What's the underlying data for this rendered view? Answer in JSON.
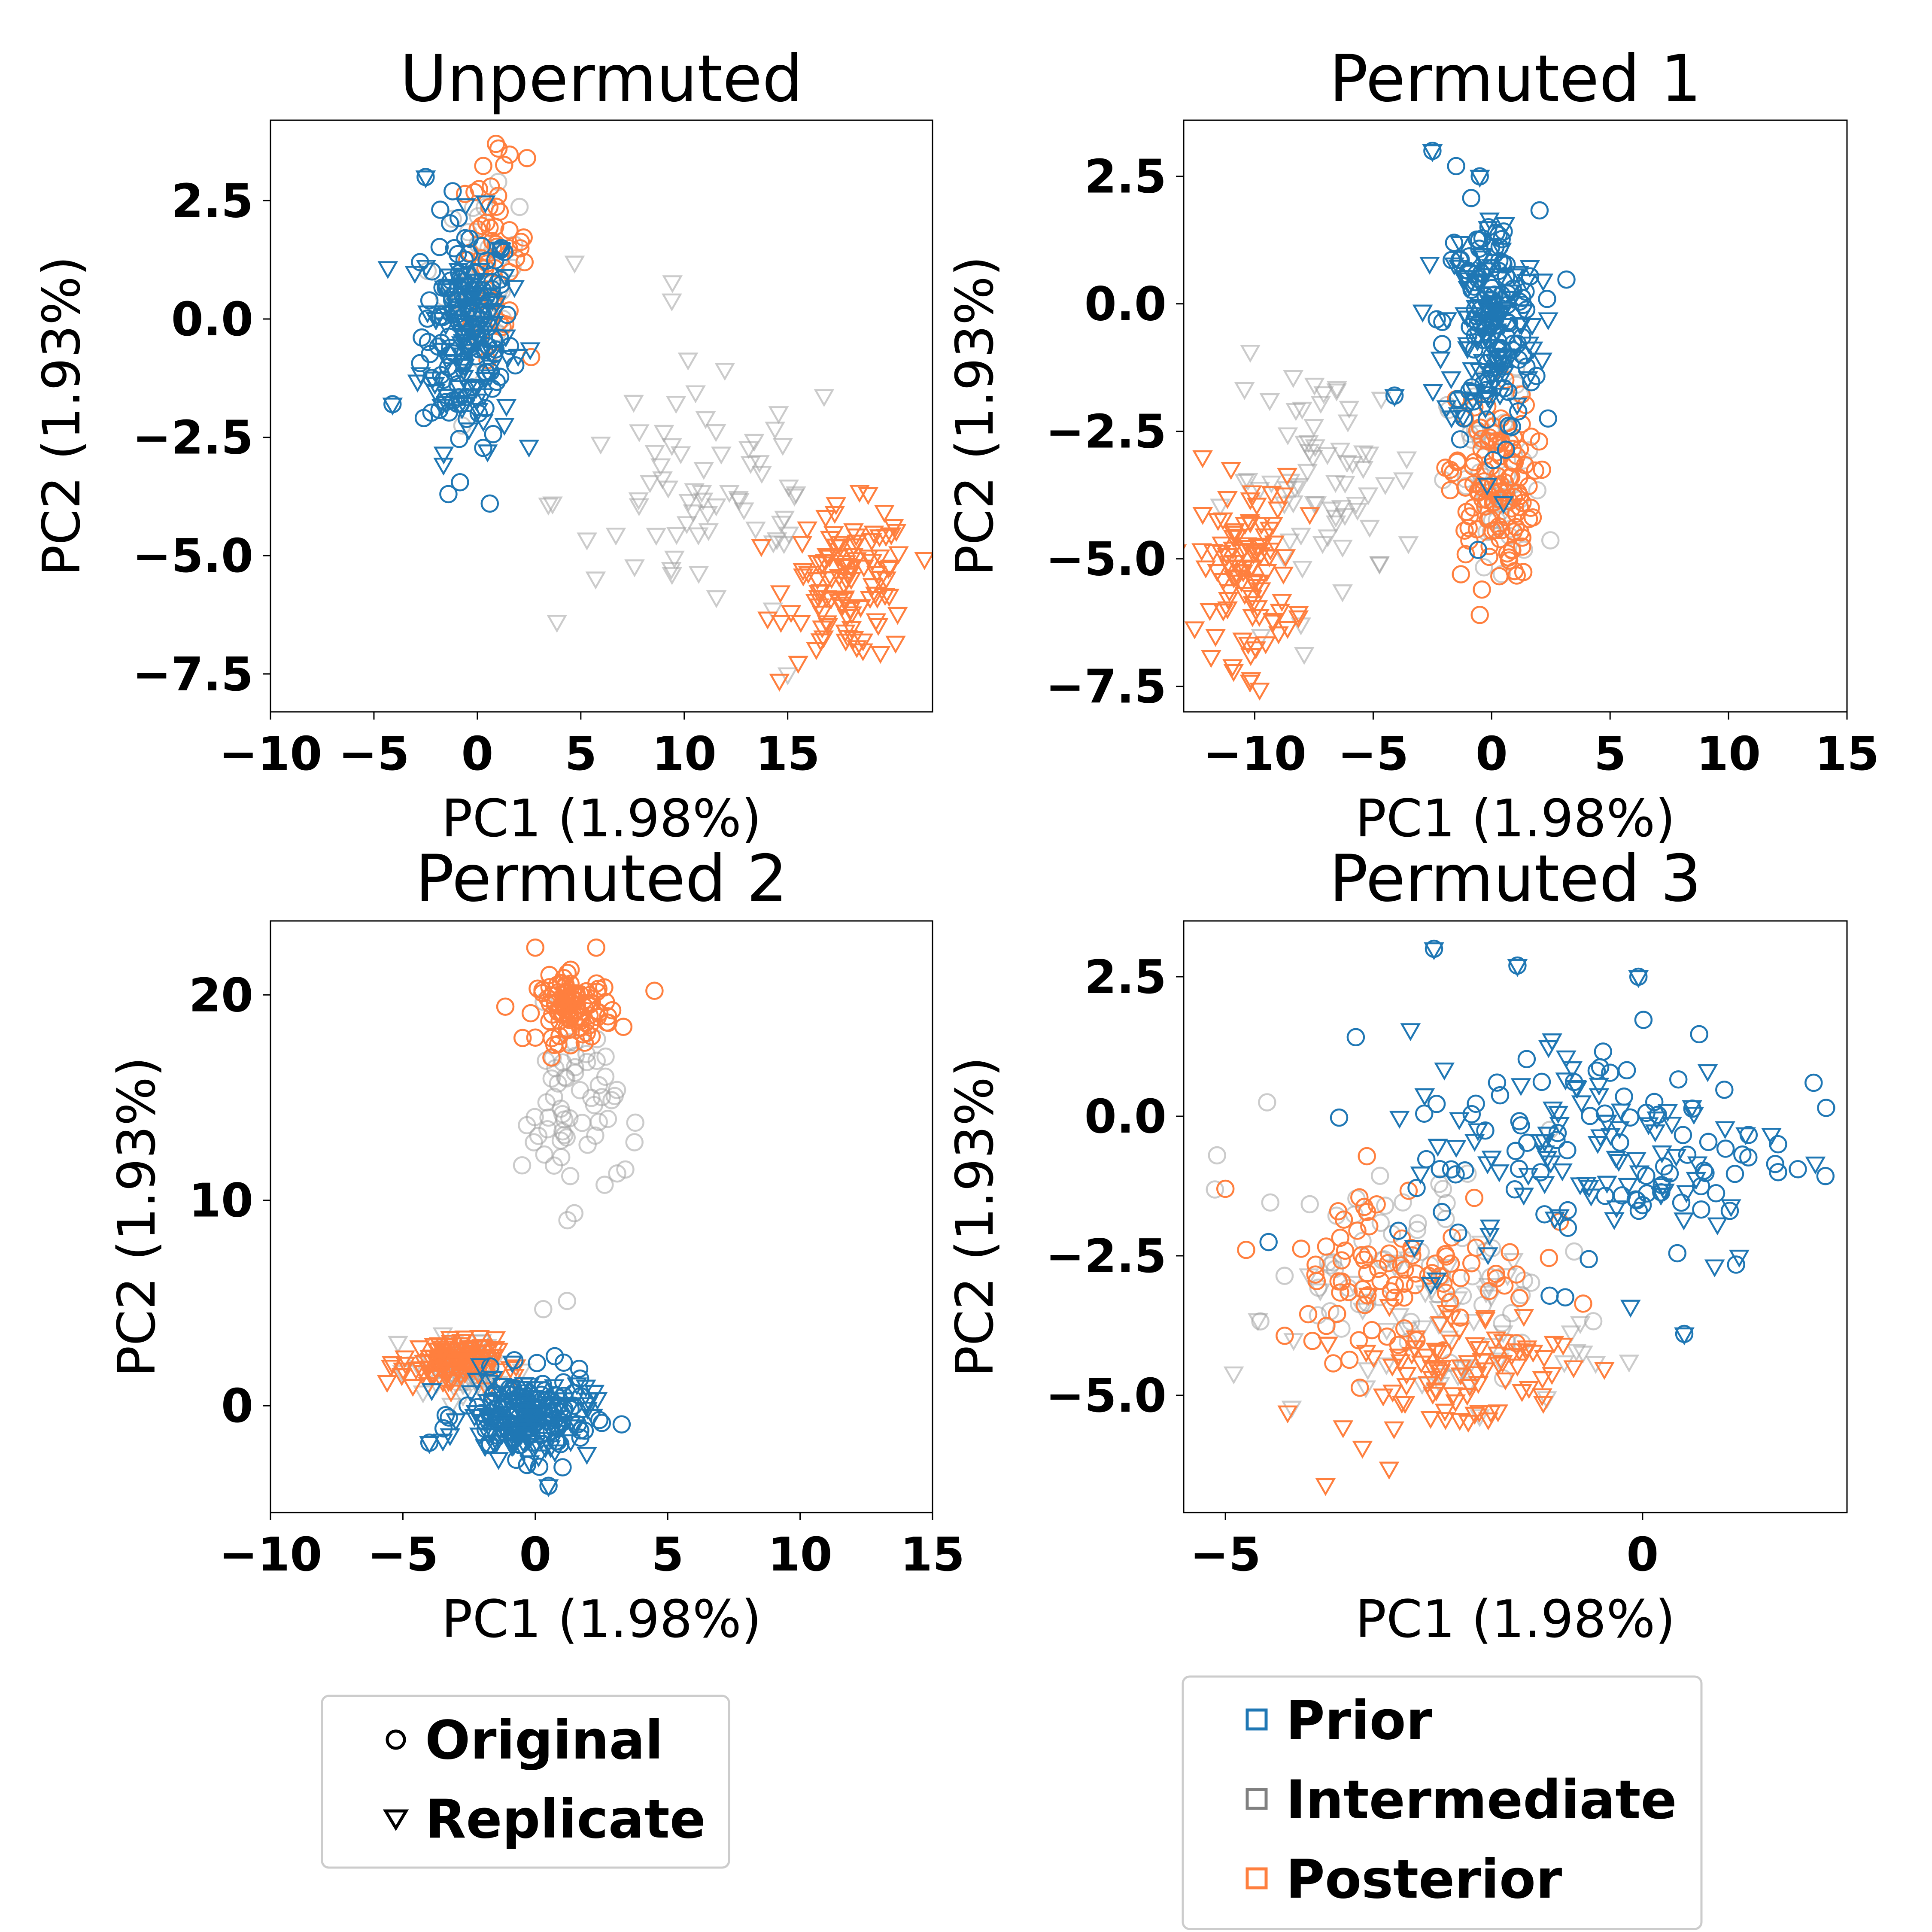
{
  "colors": {
    "Prior": "#1f77b4",
    "Intermediate": "#a0a0a0",
    "Posterior": "#ff7f3e"
  },
  "legend_markers": {
    "title": "",
    "entries": [
      {
        "label": "Original",
        "marker": "circle"
      },
      {
        "label": "Replicate",
        "marker": "triangle-down"
      }
    ]
  },
  "legend_colors": {
    "title": "",
    "entries": [
      {
        "label": "Prior",
        "color": "#1f77b4"
      },
      {
        "label": "Intermediate",
        "color": "#808080"
      },
      {
        "label": "Posterior",
        "color": "#ff7f3e"
      }
    ]
  },
  "chart_data": [
    {
      "type": "scatter",
      "title": "Unpermuted",
      "xlabel": "PC1 (1.98%)",
      "ylabel": "PC2 (1.93%)",
      "xlim": [
        -10,
        22
      ],
      "ylim": [
        -8.3,
        4.2
      ],
      "xticks": [
        -10,
        -5,
        0,
        5,
        10,
        15
      ],
      "xtick_labels": [
        "−10",
        "−5",
        "0",
        "5",
        "10",
        "15"
      ],
      "yticks": [
        2.5,
        0,
        -2.5,
        -5,
        -7.5
      ],
      "ytick_labels": [
        "2.5",
        "0.0",
        "−2.5",
        "−5.0",
        "−7.5"
      ],
      "grid": false,
      "clusters": [
        {
          "series": "Prior",
          "marker": "circle",
          "cx": -0.5,
          "cy": -0.3,
          "sx": 1.1,
          "sy": 1.2,
          "n": 120
        },
        {
          "series": "Prior",
          "marker": "triangle-down",
          "cx": -0.5,
          "cy": -0.3,
          "sx": 1.1,
          "sy": 1.2,
          "n": 110
        },
        {
          "series": "Intermediate",
          "marker": "circle",
          "cx": 0.2,
          "cy": 0.8,
          "sx": 0.9,
          "sy": 0.9,
          "n": 40
        },
        {
          "series": "Posterior",
          "marker": "circle",
          "cx": 0.8,
          "cy": 1.5,
          "sx": 0.8,
          "sy": 0.9,
          "n": 50
        },
        {
          "series": "Intermediate",
          "marker": "triangle-down",
          "cx": 11.0,
          "cy": -3.8,
          "sx": 3.6,
          "sy": 1.4,
          "n": 70
        },
        {
          "series": "Posterior",
          "marker": "triangle-down",
          "cx": 18.0,
          "cy": -5.6,
          "sx": 1.5,
          "sy": 0.8,
          "n": 110
        }
      ],
      "points": [
        {
          "series": "Posterior",
          "marker": "circle",
          "x": 0.9,
          "y": 3.7
        },
        {
          "series": "Posterior",
          "marker": "circle",
          "x": 2.4,
          "y": 3.4
        },
        {
          "series": "Prior",
          "marker": "circle",
          "x": -2.5,
          "y": 3.0
        },
        {
          "series": "Prior",
          "marker": "triangle-down",
          "x": -2.5,
          "y": 3.0
        },
        {
          "series": "Prior",
          "marker": "circle",
          "x": -4.1,
          "y": -1.8
        },
        {
          "series": "Prior",
          "marker": "triangle-down",
          "x": -4.1,
          "y": -1.8
        },
        {
          "series": "Prior",
          "marker": "circle",
          "x": -1.4,
          "y": -3.7
        },
        {
          "series": "Prior",
          "marker": "circle",
          "x": 0.6,
          "y": -3.9
        },
        {
          "series": "Intermediate",
          "marker": "triangle-down",
          "x": 4.7,
          "y": 1.2
        },
        {
          "series": "Intermediate",
          "marker": "triangle-down",
          "x": 9.4,
          "y": 0.4
        },
        {
          "series": "Intermediate",
          "marker": "triangle-down",
          "x": 15.0,
          "y": -7.5
        }
      ]
    },
    {
      "type": "scatter",
      "title": "Permuted 1",
      "xlabel": "PC1 (1.98%)",
      "ylabel": "PC2 (1.93%)",
      "xlim": [
        -13,
        15
      ],
      "ylim": [
        -8,
        3.6
      ],
      "xticks": [
        -10,
        -5,
        0,
        5,
        10,
        15
      ],
      "xtick_labels": [
        "−10",
        "−5",
        "0",
        "5",
        "10",
        "15"
      ],
      "yticks": [
        2.5,
        0,
        -2.5,
        -5,
        -7.5
      ],
      "ytick_labels": [
        "2.5",
        "0.0",
        "−2.5",
        "−5.0",
        "−7.5"
      ],
      "grid": false,
      "clusters": [
        {
          "series": "Prior",
          "marker": "circle",
          "cx": 0.0,
          "cy": -0.4,
          "sx": 1.0,
          "sy": 1.1,
          "n": 110
        },
        {
          "series": "Prior",
          "marker": "triangle-down",
          "cx": 0.0,
          "cy": -0.4,
          "sx": 1.0,
          "sy": 1.1,
          "n": 110
        },
        {
          "series": "Posterior",
          "marker": "circle",
          "cx": 0.0,
          "cy": -3.6,
          "sx": 0.9,
          "sy": 0.9,
          "n": 120
        },
        {
          "series": "Intermediate",
          "marker": "circle",
          "cx": 0.2,
          "cy": -3.6,
          "sx": 1.0,
          "sy": 1.1,
          "n": 50
        },
        {
          "series": "Posterior",
          "marker": "triangle-down",
          "cx": -10.3,
          "cy": -5.2,
          "sx": 1.0,
          "sy": 0.9,
          "n": 100
        },
        {
          "series": "Intermediate",
          "marker": "triangle-down",
          "cx": -7.0,
          "cy": -3.4,
          "sx": 2.0,
          "sy": 1.1,
          "n": 70
        }
      ],
      "points": [
        {
          "series": "Prior",
          "marker": "circle",
          "x": -2.5,
          "y": 3.0
        },
        {
          "series": "Prior",
          "marker": "triangle-down",
          "x": -2.5,
          "y": 3.0
        },
        {
          "series": "Prior",
          "marker": "circle",
          "x": -1.5,
          "y": 2.7
        },
        {
          "series": "Prior",
          "marker": "circle",
          "x": -0.5,
          "y": 2.5
        },
        {
          "series": "Prior",
          "marker": "triangle-down",
          "x": -0.5,
          "y": 2.5
        },
        {
          "series": "Prior",
          "marker": "circle",
          "x": -4.1,
          "y": -1.8
        },
        {
          "series": "Prior",
          "marker": "triangle-down",
          "x": -4.1,
          "y": -1.8
        },
        {
          "series": "Prior",
          "marker": "triangle-down",
          "x": 0.5,
          "y": -3.9
        },
        {
          "series": "Posterior",
          "marker": "triangle-down",
          "x": -12.2,
          "y": -3.0
        },
        {
          "series": "Posterior",
          "marker": "triangle-down",
          "x": -10.2,
          "y": -7.4
        },
        {
          "series": "Posterior",
          "marker": "circle",
          "x": -0.5,
          "y": -6.1
        }
      ]
    },
    {
      "type": "scatter",
      "title": "Permuted 2",
      "xlabel": "PC1 (1.98%)",
      "ylabel": "PC2 (1.93%)",
      "xlim": [
        -10,
        15
      ],
      "ylim": [
        -5.2,
        23.6
      ],
      "xticks": [
        -10,
        -5,
        0,
        5,
        10,
        15
      ],
      "xtick_labels": [
        "−10",
        "−5",
        "0",
        "5",
        "10",
        "15"
      ],
      "yticks": [
        20,
        10,
        0
      ],
      "ytick_labels": [
        "20",
        "10",
        "0"
      ],
      "grid": false,
      "clusters": [
        {
          "series": "Posterior",
          "marker": "circle",
          "cx": 1.5,
          "cy": 19.3,
          "sx": 0.7,
          "sy": 0.8,
          "n": 100
        },
        {
          "series": "Intermediate",
          "marker": "circle",
          "cx": 1.3,
          "cy": 14.5,
          "sx": 0.9,
          "sy": 2.3,
          "n": 60
        },
        {
          "series": "Prior",
          "marker": "circle",
          "cx": -0.3,
          "cy": -0.5,
          "sx": 1.2,
          "sy": 1.0,
          "n": 130
        },
        {
          "series": "Prior",
          "marker": "triangle-down",
          "cx": -0.3,
          "cy": -0.5,
          "sx": 1.2,
          "sy": 1.0,
          "n": 110
        },
        {
          "series": "Posterior",
          "marker": "triangle-down",
          "cx": -3.3,
          "cy": 2.1,
          "sx": 0.9,
          "sy": 0.6,
          "n": 110
        },
        {
          "series": "Intermediate",
          "marker": "triangle-down",
          "cx": -2.6,
          "cy": 1.8,
          "sx": 1.0,
          "sy": 0.8,
          "n": 50
        }
      ],
      "points": [
        {
          "series": "Posterior",
          "marker": "circle",
          "x": 0.0,
          "y": 22.3
        },
        {
          "series": "Posterior",
          "marker": "circle",
          "x": 2.3,
          "y": 22.3
        },
        {
          "series": "Posterior",
          "marker": "circle",
          "x": 4.5,
          "y": 20.2
        },
        {
          "series": "Intermediate",
          "marker": "circle",
          "x": 0.3,
          "y": 4.7
        },
        {
          "series": "Intermediate",
          "marker": "circle",
          "x": 1.2,
          "y": 5.1
        },
        {
          "series": "Intermediate",
          "marker": "circle",
          "x": 3.4,
          "y": 11.5
        },
        {
          "series": "Prior",
          "marker": "circle",
          "x": -4.0,
          "y": -1.8
        },
        {
          "series": "Prior",
          "marker": "triangle-down",
          "x": -4.0,
          "y": -1.8
        },
        {
          "series": "Prior",
          "marker": "circle",
          "x": 0.5,
          "y": -3.9
        },
        {
          "series": "Prior",
          "marker": "triangle-down",
          "x": 0.5,
          "y": -3.9
        }
      ]
    },
    {
      "type": "scatter",
      "title": "Permuted 3",
      "xlabel": "PC1 (1.98%)",
      "ylabel": "PC2 (1.93%)",
      "xlim": [
        -5.5,
        2.45
      ],
      "ylim": [
        -7.1,
        3.5
      ],
      "xticks": [
        -5,
        0
      ],
      "xtick_labels": [
        "−5",
        "0"
      ],
      "yticks": [
        2.5,
        0,
        -2.5,
        -5
      ],
      "ytick_labels": [
        "2.5",
        "0.0",
        "−2.5",
        "−5.0"
      ],
      "grid": false,
      "clusters": [
        {
          "series": "Prior",
          "marker": "circle",
          "cx": -0.5,
          "cy": -0.6,
          "sx": 1.2,
          "sy": 1.1,
          "n": 90
        },
        {
          "series": "Prior",
          "marker": "triangle-down",
          "cx": -0.5,
          "cy": -0.6,
          "sx": 1.2,
          "sy": 1.1,
          "n": 90
        },
        {
          "series": "Posterior",
          "marker": "circle",
          "cx": -2.9,
          "cy": -2.7,
          "sx": 0.8,
          "sy": 0.8,
          "n": 90
        },
        {
          "series": "Posterior",
          "marker": "triangle-down",
          "cx": -2.3,
          "cy": -4.5,
          "sx": 0.7,
          "sy": 0.6,
          "n": 90
        },
        {
          "series": "Intermediate",
          "marker": "circle",
          "cx": -2.7,
          "cy": -2.7,
          "sx": 1.0,
          "sy": 0.9,
          "n": 60
        },
        {
          "series": "Intermediate",
          "marker": "triangle-down",
          "cx": -2.4,
          "cy": -3.9,
          "sx": 0.9,
          "sy": 0.8,
          "n": 50
        }
      ],
      "points": [
        {
          "series": "Prior",
          "marker": "circle",
          "x": -2.5,
          "y": 3.0
        },
        {
          "series": "Prior",
          "marker": "triangle-down",
          "x": -2.5,
          "y": 3.0
        },
        {
          "series": "Prior",
          "marker": "circle",
          "x": -1.5,
          "y": 2.7
        },
        {
          "series": "Prior",
          "marker": "triangle-down",
          "x": -1.5,
          "y": 2.7
        },
        {
          "series": "Prior",
          "marker": "circle",
          "x": -0.05,
          "y": 2.5
        },
        {
          "series": "Prior",
          "marker": "triangle-down",
          "x": -0.05,
          "y": 2.5
        },
        {
          "series": "Prior",
          "marker": "circle",
          "x": 2.05,
          "y": 0.6
        },
        {
          "series": "Prior",
          "marker": "circle",
          "x": 2.2,
          "y": 0.15
        },
        {
          "series": "Prior",
          "marker": "circle",
          "x": 0.5,
          "y": -3.9
        },
        {
          "series": "Prior",
          "marker": "triangle-down",
          "x": 0.5,
          "y": -3.9
        },
        {
          "series": "Posterior",
          "marker": "circle",
          "x": -5.0,
          "y": -1.3
        },
        {
          "series": "Posterior",
          "marker": "triangle-down",
          "x": -3.8,
          "y": -6.6
        },
        {
          "series": "Intermediate",
          "marker": "triangle-down",
          "x": -4.9,
          "y": -4.6
        },
        {
          "series": "Intermediate",
          "marker": "circle",
          "x": -5.1,
          "y": -0.7
        },
        {
          "series": "Intermediate",
          "marker": "circle",
          "x": -4.5,
          "y": 0.25
        }
      ]
    }
  ]
}
